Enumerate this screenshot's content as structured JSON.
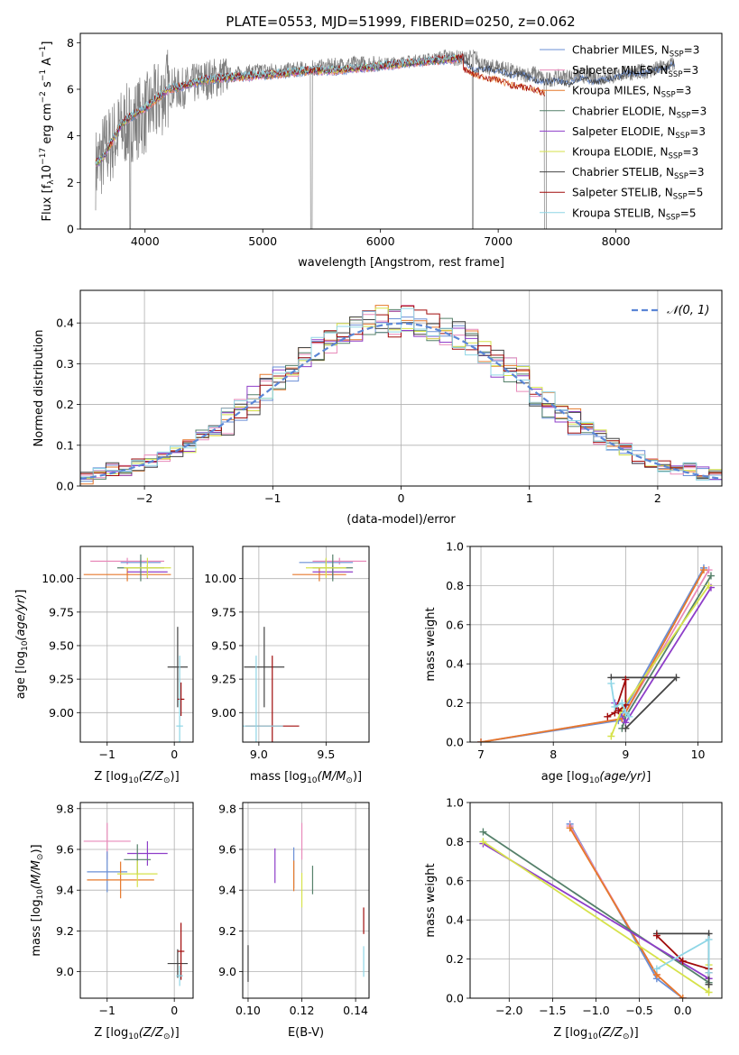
{
  "title": "PLATE=0553, MJD=51999, FIBERID=0250, z=0.062",
  "colors": {
    "Chabrier MILES": "#6a8fd6",
    "Salpeter MILES": "#e88aba",
    "Kroupa MILES": "#e6792b",
    "Chabrier ELODIE": "#55806a",
    "Salpeter ELODIE": "#8e3ec9",
    "Kroupa ELODIE": "#d6e24a",
    "Chabrier STELIB": "#444444",
    "Salpeter STELIB": "#a10b0b",
    "Kroupa STELIB": "#8fd6e6",
    "data": "#7f7f7f",
    "normal": "#5b86d6"
  },
  "chart_data": [
    {
      "type": "line",
      "panel": "spectrum",
      "title": "PLATE=0553, MJD=51999, FIBERID=0250, z=0.062",
      "xlabel": "wavelength [Angstrom, rest frame]",
      "ylabel": "Flux [f",
      "xlim": [
        3450,
        8900
      ],
      "ylim": [
        0,
        8.4
      ],
      "xticks": [
        4000,
        5000,
        6000,
        7000,
        8000
      ],
      "yticks": [
        0,
        2,
        4,
        6,
        8
      ],
      "grid": false,
      "legend_position": "upper right",
      "legend": [
        {
          "name": "Chabrier MILES",
          "sub": "SSP",
          "n": "3"
        },
        {
          "name": "Salpeter MILES",
          "sub": "SSP",
          "n": "3"
        },
        {
          "name": "Kroupa MILES",
          "sub": "SSP",
          "n": "3"
        },
        {
          "name": "Chabrier ELODIE",
          "sub": "SSP",
          "n": "3"
        },
        {
          "name": "Salpeter ELODIE",
          "sub": "SSP",
          "n": "3"
        },
        {
          "name": "Kroupa ELODIE",
          "sub": "SSP",
          "n": "3"
        },
        {
          "name": "Chabrier STELIB",
          "sub": "SSP",
          "n": "3"
        },
        {
          "name": "Salpeter STELIB",
          "sub": "SSP",
          "n": "5"
        },
        {
          "name": "Kroupa STELIB",
          "sub": "SSP",
          "n": "5"
        }
      ],
      "data_curve": {
        "x": [
          3580,
          3650,
          3700,
          3800,
          3900,
          4000,
          4100,
          4200,
          4300,
          4500,
          4700,
          4861,
          5000,
          5200,
          5400,
          5600,
          5800,
          6000,
          6200,
          6400,
          6560,
          6700,
          6800,
          6900,
          7000,
          7100,
          7200,
          7300,
          7400,
          7500,
          7700,
          7900,
          8100,
          8300,
          8500
        ],
        "y": [
          2.6,
          3.3,
          3.6,
          4.3,
          4.7,
          4.9,
          5.4,
          6.1,
          6.0,
          6.4,
          6.6,
          6.7,
          6.8,
          6.8,
          6.9,
          7.0,
          7.1,
          7.1,
          7.2,
          7.3,
          7.4,
          7.3,
          7.4,
          6.9,
          7.0,
          6.8,
          6.6,
          6.7,
          6.4,
          6.5,
          6.6,
          6.5,
          6.7,
          6.8,
          7.1
        ]
      },
      "model_curve": {
        "x": [
          3580,
          3650,
          3700,
          3800,
          3900,
          4000,
          4100,
          4200,
          4300,
          4500,
          4700,
          5000,
          5200,
          5400,
          5600,
          5800,
          6000,
          6200,
          6400,
          6600,
          6800,
          7000,
          7200,
          7400
        ],
        "y": [
          2.8,
          3.1,
          3.6,
          4.5,
          4.9,
          5.2,
          5.6,
          6.0,
          6.1,
          6.4,
          6.5,
          6.6,
          6.7,
          6.8,
          6.8,
          6.9,
          7.0,
          7.1,
          7.2,
          7.3,
          7.4,
          7.3,
          7.2,
          7.1
        ]
      },
      "red_models_tail": {
        "x": [
          6700,
          6800,
          6900,
          7000,
          7100,
          7200,
          7300,
          7400
        ],
        "y": [
          6.9,
          6.6,
          6.5,
          6.4,
          6.2,
          6.1,
          6.0,
          5.8
        ]
      },
      "dark_models_tail": {
        "x": [
          6700,
          6800,
          6900,
          7000,
          7100,
          7200,
          7300,
          7400,
          7500,
          7600,
          7700,
          7800,
          7900,
          8000,
          8100,
          8200,
          8300,
          8400,
          8500
        ],
        "y": [
          7.3,
          6.8,
          6.9,
          6.8,
          6.6,
          6.7,
          6.4,
          6.3,
          6.4,
          6.2,
          6.5,
          6.3,
          6.4,
          6.5,
          6.7,
          6.6,
          6.8,
          6.9,
          7.1
        ]
      }
    },
    {
      "type": "line",
      "panel": "residuals",
      "xlabel": "(data-model)/error",
      "ylabel": "Normed distribution",
      "xlim": [
        -2.5,
        2.5
      ],
      "ylim": [
        0,
        0.48
      ],
      "xticks": [
        -2,
        -1,
        0,
        1,
        2
      ],
      "yticks": [
        0.0,
        0.1,
        0.2,
        0.3,
        0.4
      ],
      "grid": true,
      "legend": [
        {
          "name": "𝒩(0, 1)"
        }
      ],
      "legend_position": "upper right",
      "normal": {
        "mu": 0,
        "sigma": 1
      },
      "histogram_bins": [
        -2.5,
        -2.4,
        -2.3,
        -2.2,
        -2.1,
        -2.0,
        -1.9,
        -1.8,
        -1.7,
        -1.6,
        -1.5,
        -1.4,
        -1.3,
        -1.2,
        -1.1,
        -1.0,
        -0.9,
        -0.8,
        -0.7,
        -0.6,
        -0.5,
        -0.4,
        -0.3,
        -0.2,
        -0.1,
        0.0,
        0.1,
        0.2,
        0.3,
        0.4,
        0.5,
        0.6,
        0.7,
        0.8,
        0.9,
        1.0,
        1.1,
        1.2,
        1.3,
        1.4,
        1.5,
        1.6,
        1.7,
        1.8,
        1.9,
        2.0,
        2.1,
        2.2,
        2.3,
        2.4,
        2.5
      ],
      "histogram_base": [
        0.02,
        0.03,
        0.04,
        0.04,
        0.05,
        0.06,
        0.07,
        0.08,
        0.1,
        0.12,
        0.14,
        0.16,
        0.18,
        0.21,
        0.24,
        0.26,
        0.28,
        0.31,
        0.33,
        0.35,
        0.37,
        0.38,
        0.4,
        0.41,
        0.4,
        0.41,
        0.4,
        0.39,
        0.38,
        0.37,
        0.35,
        0.33,
        0.3,
        0.28,
        0.26,
        0.23,
        0.2,
        0.18,
        0.16,
        0.14,
        0.12,
        0.1,
        0.09,
        0.07,
        0.06,
        0.05,
        0.04,
        0.04,
        0.03,
        0.03
      ]
    },
    {
      "type": "scatter",
      "panel": "age-vs-Z",
      "xlabel": "Z [log",
      "ylabel": "age  [log",
      "xlim": [
        -1.4,
        0.28
      ],
      "ylim": [
        8.78,
        10.24
      ],
      "xticks": [
        -1,
        0
      ],
      "yticks": [
        9.0,
        9.25,
        9.5,
        9.75,
        10.0
      ],
      "grid": true,
      "points": [
        {
          "model": "Salpeter MILES",
          "x": -0.7,
          "y": 10.13,
          "xerr": 0.55,
          "yerr": 0.05
        },
        {
          "model": "Chabrier MILES",
          "x": -0.5,
          "y": 10.12,
          "xerr": 0.3,
          "yerr": 0.04
        },
        {
          "model": "Kroupa MILES",
          "x": -0.7,
          "y": 10.03,
          "xerr": 0.65,
          "yerr": 0.1
        },
        {
          "model": "Salpeter ELODIE",
          "x": -0.4,
          "y": 10.05,
          "xerr": 0.3,
          "yerr": 0.1
        },
        {
          "model": "Chabrier ELODIE",
          "x": -0.5,
          "y": 10.08,
          "xerr": 0.35,
          "yerr": 0.2
        },
        {
          "model": "Kroupa ELODIE",
          "x": -0.4,
          "y": 10.08,
          "xerr": 0.35,
          "yerr": 0.15
        },
        {
          "model": "Chabrier STELIB",
          "x": 0.05,
          "y": 9.34,
          "xerr": 0.15,
          "yerr": 0.6
        },
        {
          "model": "Salpeter STELIB",
          "x": 0.1,
          "y": 9.1,
          "xerr": 0.05,
          "yerr": 0.25
        },
        {
          "model": "Kroupa STELIB",
          "x": 0.08,
          "y": 8.9,
          "xerr": 0.05,
          "yerr": 1.05
        }
      ]
    },
    {
      "type": "scatter",
      "panel": "age-vs-mass",
      "xlabel": "mass [log",
      "ylabel": "",
      "xlim": [
        8.88,
        9.82
      ],
      "ylim": [
        8.78,
        10.24
      ],
      "xticks": [
        9.0,
        9.5
      ],
      "yticks": [
        9.0,
        9.25,
        9.5,
        9.75,
        10.0
      ],
      "grid": true,
      "points": [
        {
          "model": "Salpeter MILES",
          "x": 9.6,
          "y": 10.13,
          "xerr": 0.2,
          "yerr": 0.05
        },
        {
          "model": "Chabrier MILES",
          "x": 9.5,
          "y": 10.12,
          "xerr": 0.2,
          "yerr": 0.05
        },
        {
          "model": "Kroupa MILES",
          "x": 9.45,
          "y": 10.03,
          "xerr": 0.2,
          "yerr": 0.1
        },
        {
          "model": "Salpeter ELODIE",
          "x": 9.55,
          "y": 10.05,
          "xerr": 0.15,
          "yerr": 0.1
        },
        {
          "model": "Chabrier ELODIE",
          "x": 9.55,
          "y": 10.08,
          "xerr": 0.15,
          "yerr": 0.2
        },
        {
          "model": "Kroupa ELODIE",
          "x": 9.5,
          "y": 10.08,
          "xerr": 0.15,
          "yerr": 0.15
        },
        {
          "model": "Chabrier STELIB",
          "x": 9.04,
          "y": 9.34,
          "xerr": 0.15,
          "yerr": 0.6
        },
        {
          "model": "Salpeter STELIB",
          "x": 9.1,
          "y": 8.9,
          "xerr": 0.2,
          "yerr": 1.05
        },
        {
          "model": "Kroupa STELIB",
          "x": 8.98,
          "y": 8.9,
          "xerr": 0.2,
          "yerr": 1.05
        }
      ]
    },
    {
      "type": "line",
      "panel": "mass-weight-vs-age",
      "xlabel": "age  [log",
      "ylabel": "mass weight",
      "xlim": [
        6.85,
        10.33
      ],
      "ylim": [
        0,
        1.0
      ],
      "xticks": [
        7,
        8,
        9,
        10
      ],
      "yticks": [
        0.0,
        0.2,
        0.4,
        0.6,
        0.8,
        1.0
      ],
      "grid": true,
      "series": [
        {
          "name": "Chabrier MILES",
          "x": [
            7.0,
            8.9,
            10.08
          ],
          "y": [
            0.0,
            0.11,
            0.89
          ]
        },
        {
          "name": "Salpeter MILES",
          "x": [
            7.0,
            8.95,
            10.15
          ],
          "y": [
            0.0,
            0.12,
            0.88
          ]
        },
        {
          "name": "Kroupa MILES",
          "x": [
            7.0,
            8.95,
            10.08
          ],
          "y": [
            0.0,
            0.12,
            0.88
          ]
        },
        {
          "name": "Chabrier ELODIE",
          "x": [
            8.95,
            9.0,
            10.18
          ],
          "y": [
            0.07,
            0.13,
            0.85
          ]
        },
        {
          "name": "Salpeter ELODIE",
          "x": [
            8.85,
            9.0,
            10.18
          ],
          "y": [
            0.2,
            0.1,
            0.79
          ]
        },
        {
          "name": "Kroupa ELODIE",
          "x": [
            8.8,
            8.95,
            10.15
          ],
          "y": [
            0.03,
            0.17,
            0.8
          ]
        },
        {
          "name": "Chabrier STELIB",
          "x": [
            8.8,
            9.7,
            9.0
          ],
          "y": [
            0.33,
            0.33,
            0.07
          ]
        },
        {
          "name": "Salpeter STELIB",
          "x": [
            8.75,
            8.85,
            9.0,
            9.0,
            8.9
          ],
          "y": [
            0.13,
            0.15,
            0.32,
            0.19,
            0.16
          ]
        },
        {
          "name": "Kroupa STELIB",
          "x": [
            8.8,
            8.85,
            8.95,
            9.0,
            9.05
          ],
          "y": [
            0.3,
            0.18,
            0.2,
            0.15,
            0.13
          ]
        }
      ]
    },
    {
      "type": "scatter",
      "panel": "mass-vs-Z",
      "xlabel": "Z [log",
      "ylabel": "mass [log",
      "xlim": [
        -1.4,
        0.28
      ],
      "ylim": [
        8.87,
        9.83
      ],
      "xticks": [
        -1,
        0
      ],
      "yticks": [
        9.0,
        9.2,
        9.4,
        9.6,
        9.8
      ],
      "grid": true,
      "points": [
        {
          "model": "Salpeter MILES",
          "x": -1.0,
          "y": 9.64,
          "xerr": 0.35,
          "yerr": 0.18
        },
        {
          "model": "Chabrier MILES",
          "x": -1.0,
          "y": 9.49,
          "xerr": 0.3,
          "yerr": 0.2
        },
        {
          "model": "Kroupa MILES",
          "x": -0.8,
          "y": 9.45,
          "xerr": 0.5,
          "yerr": 0.18
        },
        {
          "model": "Salpeter ELODIE",
          "x": -0.4,
          "y": 9.58,
          "xerr": 0.3,
          "yerr": 0.12
        },
        {
          "model": "Chabrier ELODIE",
          "x": -0.55,
          "y": 9.55,
          "xerr": 0.2,
          "yerr": 0.15
        },
        {
          "model": "Kroupa ELODIE",
          "x": -0.55,
          "y": 9.48,
          "xerr": 0.3,
          "yerr": 0.13
        },
        {
          "model": "Chabrier STELIB",
          "x": 0.05,
          "y": 9.04,
          "xerr": 0.15,
          "yerr": 0.14
        },
        {
          "model": "Salpeter STELIB",
          "x": 0.1,
          "y": 9.1,
          "xerr": 0.05,
          "yerr": 0.28
        },
        {
          "model": "Kroupa STELIB",
          "x": 0.08,
          "y": 8.98,
          "xerr": 0.05,
          "yerr": 0.1
        }
      ]
    },
    {
      "type": "scatter",
      "panel": "mass-vs-ebv",
      "xlabel": "E(B-V)",
      "ylabel": "",
      "xlim": [
        0.098,
        0.145
      ],
      "ylim": [
        8.87,
        9.83
      ],
      "xticks": [
        0.1,
        0.12,
        0.14
      ],
      "yticks": [
        9.0,
        9.2,
        9.4,
        9.6,
        9.8
      ],
      "grid": true,
      "points": [
        {
          "model": "Salpeter MILES",
          "x": 0.12,
          "y": 9.64,
          "yerr": 0.18
        },
        {
          "model": "Chabrier MILES",
          "x": 0.117,
          "y": 9.51,
          "yerr": 0.2
        },
        {
          "model": "Kroupa MILES",
          "x": 0.117,
          "y": 9.47,
          "yerr": 0.15
        },
        {
          "model": "Salpeter ELODIE",
          "x": 0.11,
          "y": 9.52,
          "yerr": 0.17
        },
        {
          "model": "Chabrier ELODIE",
          "x": 0.124,
          "y": 9.45,
          "yerr": 0.14
        },
        {
          "model": "Kroupa ELODIE",
          "x": 0.12,
          "y": 9.4,
          "yerr": 0.17
        },
        {
          "model": "Chabrier STELIB",
          "x": 0.1,
          "y": 9.04,
          "yerr": 0.18
        },
        {
          "model": "Salpeter STELIB",
          "x": 0.143,
          "y": 9.25,
          "yerr": 0.13
        },
        {
          "model": "Kroupa STELIB",
          "x": 0.143,
          "y": 9.05,
          "yerr": 0.15
        }
      ]
    },
    {
      "type": "line",
      "panel": "mass-weight-vs-Z",
      "xlabel": "Z [log",
      "ylabel": "mass weight",
      "xlim": [
        -2.45,
        0.45
      ],
      "ylim": [
        0,
        1.0
      ],
      "xticks": [
        -2.0,
        -1.5,
        -1.0,
        -0.5,
        0.0
      ],
      "yticks": [
        0.0,
        0.2,
        0.4,
        0.6,
        0.8,
        1.0
      ],
      "grid": true,
      "series": [
        {
          "name": "Chabrier MILES",
          "x": [
            -1.3,
            -0.3,
            0.0
          ],
          "y": [
            0.89,
            0.1,
            0.0
          ]
        },
        {
          "name": "Salpeter MILES",
          "x": [
            -1.3,
            -0.3,
            0.0
          ],
          "y": [
            0.88,
            0.12,
            0.0
          ]
        },
        {
          "name": "Kroupa MILES",
          "x": [
            -1.3,
            -0.3,
            0.0
          ],
          "y": [
            0.87,
            0.12,
            0.0
          ]
        },
        {
          "name": "Chabrier ELODIE",
          "x": [
            -2.3,
            0.3,
            0.3
          ],
          "y": [
            0.85,
            0.08,
            0.07
          ]
        },
        {
          "name": "Salpeter ELODIE",
          "x": [
            -2.3,
            0.3,
            0.3
          ],
          "y": [
            0.79,
            0.1,
            0.1
          ]
        },
        {
          "name": "Kroupa ELODIE",
          "x": [
            -2.3,
            0.3,
            0.3
          ],
          "y": [
            0.8,
            0.03,
            0.17
          ]
        },
        {
          "name": "Chabrier STELIB",
          "x": [
            -0.3,
            0.3,
            0.3
          ],
          "y": [
            0.33,
            0.33,
            0.07
          ]
        },
        {
          "name": "Salpeter STELIB",
          "x": [
            -0.3,
            0.0,
            0.3,
            0.3
          ],
          "y": [
            0.32,
            0.19,
            0.15,
            0.13
          ]
        },
        {
          "name": "Kroupa STELIB",
          "x": [
            -0.3,
            0.3,
            0.3
          ],
          "y": [
            0.15,
            0.3,
            0.13
          ]
        }
      ]
    }
  ]
}
